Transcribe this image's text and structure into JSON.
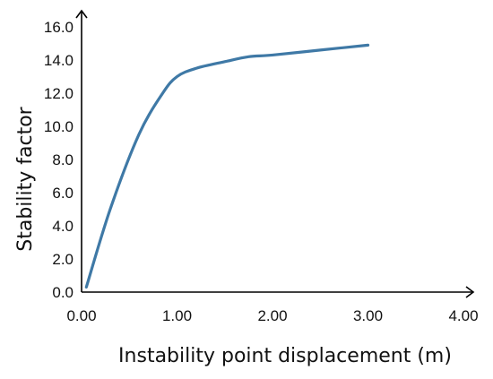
{
  "chart_data": {
    "type": "line",
    "title": "",
    "xlabel": "Instability point displacement (m)",
    "ylabel": "Stability factor",
    "xlim": [
      0,
      4
    ],
    "ylim": [
      0,
      16
    ],
    "x_ticks": [
      "0.00",
      "1.00",
      "2.00",
      "3.00",
      "4.00"
    ],
    "y_ticks": [
      "0.0",
      "2.0",
      "4.0",
      "6.0",
      "8.0",
      "10.0",
      "12.0",
      "14.0",
      "16.0"
    ],
    "grid": false,
    "legend": "none",
    "series": [
      {
        "color": "#3f79a6",
        "points": [
          [
            0.05,
            0.3
          ],
          [
            0.3,
            5.0
          ],
          [
            0.6,
            9.5
          ],
          [
            0.85,
            12.0
          ],
          [
            1.0,
            13.0
          ],
          [
            1.2,
            13.5
          ],
          [
            1.5,
            13.9
          ],
          [
            1.75,
            14.2
          ],
          [
            2.0,
            14.3
          ],
          [
            2.5,
            14.6
          ],
          [
            3.0,
            14.9
          ]
        ]
      }
    ]
  }
}
